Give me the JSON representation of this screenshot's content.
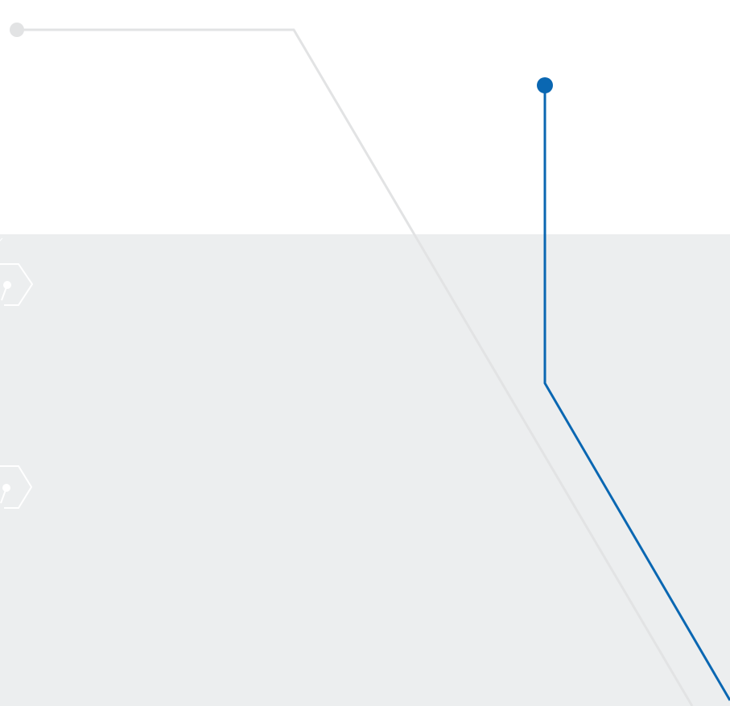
{
  "colors": {
    "background": "#ffffff",
    "band": "#eceeef",
    "grey_line": "#e2e3e4",
    "blue_line": "#0a67b2",
    "hex_outline": "#ffffff"
  },
  "icons": [
    "circuit-node-hexagon-icon",
    "circuit-node-hexagon-icon"
  ]
}
